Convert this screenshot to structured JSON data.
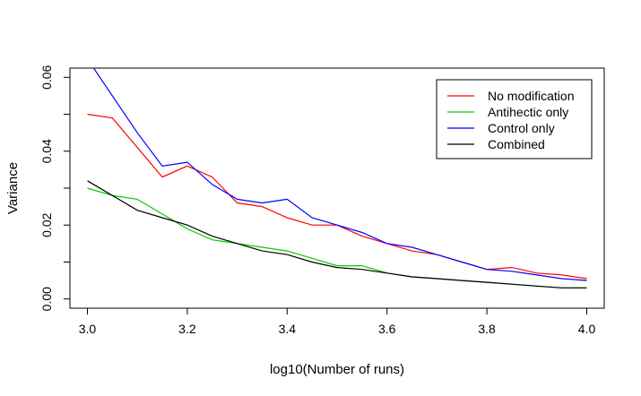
{
  "chart_data": {
    "type": "line",
    "title": "",
    "xlabel": "log10(Number of runs)",
    "ylabel": "Variance",
    "xlim": [
      2.965,
      4.035
    ],
    "ylim": [
      -0.0025,
      0.0625
    ],
    "xticks": [
      3.0,
      3.2,
      3.4,
      3.6,
      3.8,
      4.0
    ],
    "xtick_labels": [
      "3.0",
      "3.2",
      "3.4",
      "3.6",
      "3.8",
      "4.0"
    ],
    "yticks": [
      0.0,
      0.01,
      0.02,
      0.03,
      0.04,
      0.05,
      0.06
    ],
    "ytick_labels": [
      "0.00",
      "",
      "0.02",
      "",
      "0.04",
      "",
      "0.06"
    ],
    "grid": false,
    "legend_position": "top-right",
    "x": [
      3.0,
      3.05,
      3.1,
      3.15,
      3.2,
      3.25,
      3.3,
      3.35,
      3.4,
      3.45,
      3.5,
      3.55,
      3.6,
      3.65,
      3.7,
      3.75,
      3.8,
      3.85,
      3.9,
      3.95,
      4.0
    ],
    "series": [
      {
        "name": "No modification",
        "color": "#ff0000",
        "values": [
          0.05,
          0.049,
          0.041,
          0.033,
          0.036,
          0.033,
          0.026,
          0.025,
          0.022,
          0.02,
          0.02,
          0.017,
          0.015,
          0.013,
          0.012,
          0.01,
          0.008,
          0.0085,
          0.007,
          0.0065,
          0.0055
        ]
      },
      {
        "name": "Antihectic only",
        "color": "#00cc00",
        "values": [
          0.03,
          0.028,
          0.027,
          0.023,
          0.019,
          0.016,
          0.015,
          0.014,
          0.013,
          0.011,
          0.009,
          0.009,
          0.007,
          0.006,
          0.0055,
          0.005,
          0.0045,
          0.004,
          0.0035,
          0.003,
          0.003
        ]
      },
      {
        "name": "Control only",
        "color": "#0000ff",
        "values": [
          0.065,
          0.055,
          0.045,
          0.036,
          0.037,
          0.031,
          0.027,
          0.026,
          0.027,
          0.022,
          0.02,
          0.018,
          0.015,
          0.014,
          0.012,
          0.01,
          0.008,
          0.0075,
          0.0065,
          0.0055,
          0.005
        ]
      },
      {
        "name": "Combined",
        "color": "#000000",
        "values": [
          0.032,
          0.028,
          0.024,
          0.022,
          0.02,
          0.017,
          0.015,
          0.013,
          0.012,
          0.01,
          0.0085,
          0.008,
          0.007,
          0.006,
          0.0055,
          0.005,
          0.0045,
          0.004,
          0.0035,
          0.003,
          0.003
        ]
      }
    ]
  }
}
